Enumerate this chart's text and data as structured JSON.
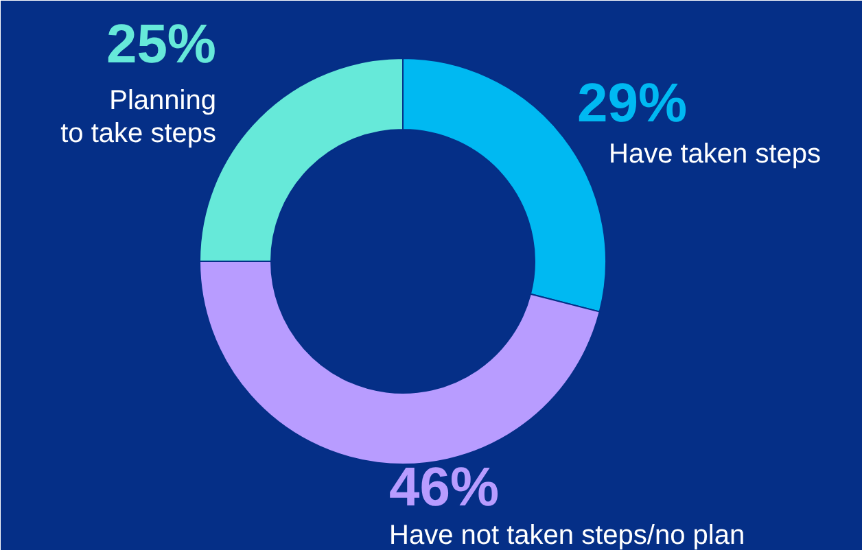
{
  "chart_data": {
    "type": "donut",
    "categories": [
      "Have taken steps",
      "Have not taken steps/no plan",
      "Planning\nto take steps"
    ],
    "values": [
      29,
      46,
      25
    ],
    "colors": [
      "#00b9f2",
      "#b89cff",
      "#66e9d9"
    ],
    "value_labels": [
      "29%",
      "46%",
      "25%"
    ]
  }
}
